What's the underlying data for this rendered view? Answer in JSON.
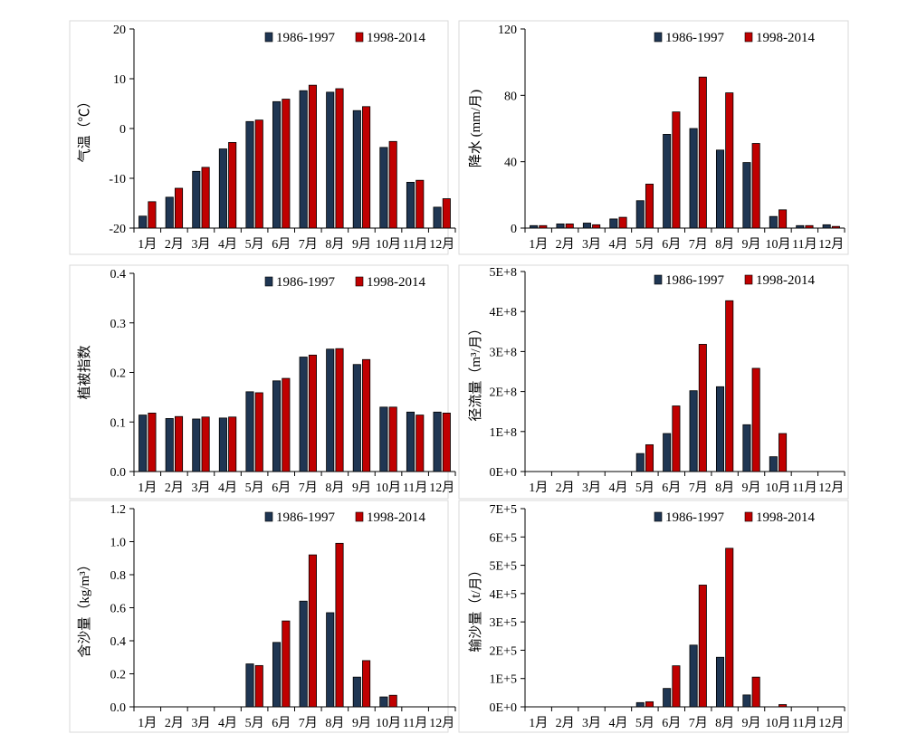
{
  "colors": {
    "series_a": "#1f3653",
    "series_b": "#c00000"
  },
  "chart_data": [
    {
      "type": "bar",
      "id": "temperature",
      "title": "",
      "ylabel": "气温（℃）",
      "xlabel": "",
      "categories": [
        "1月",
        "2月",
        "3月",
        "4月",
        "5月",
        "6月",
        "7月",
        "8月",
        "9月",
        "10月",
        "11月",
        "12月"
      ],
      "ylim": [
        -20,
        20
      ],
      "yticks": [
        "20",
        "10",
        "0",
        "-10",
        "-20"
      ],
      "ytick_values": [
        20,
        10,
        0,
        -10,
        -20
      ],
      "baseline": -20,
      "legend_position": "top-right",
      "series": [
        {
          "name": "1986-1997",
          "values": [
            -17.6,
            -13.8,
            -8.6,
            -4.1,
            1.4,
            5.4,
            7.6,
            7.3,
            3.6,
            -3.8,
            -10.8,
            -15.8
          ]
        },
        {
          "name": "1998-2014",
          "values": [
            -14.7,
            -12.0,
            -7.8,
            -2.8,
            1.7,
            5.9,
            8.7,
            8.0,
            4.4,
            -2.6,
            -10.4,
            -14.1
          ]
        }
      ]
    },
    {
      "type": "bar",
      "id": "precipitation",
      "title": "",
      "ylabel": "降水 (mm/月)",
      "xlabel": "",
      "categories": [
        "1月",
        "2月",
        "3月",
        "4月",
        "5月",
        "6月",
        "7月",
        "8月",
        "9月",
        "10月",
        "11月",
        "12月"
      ],
      "ylim": [
        0,
        120
      ],
      "yticks": [
        "120",
        "80",
        "40",
        "0"
      ],
      "ytick_values": [
        120,
        80,
        40,
        0
      ],
      "baseline": 0,
      "legend_position": "top-right",
      "series": [
        {
          "name": "1986-1997",
          "values": [
            1.5,
            2.5,
            3.0,
            5.5,
            16.5,
            56.5,
            60.0,
            47.0,
            39.5,
            7.0,
            1.5,
            2.0
          ]
        },
        {
          "name": "1998-2014",
          "values": [
            1.5,
            2.5,
            2.0,
            6.5,
            26.5,
            70.0,
            91.0,
            81.5,
            51.0,
            11.0,
            1.5,
            1.0
          ]
        }
      ]
    },
    {
      "type": "bar",
      "id": "vegetation",
      "title": "",
      "ylabel": "植被指数",
      "xlabel": "",
      "categories": [
        "1月",
        "2月",
        "3月",
        "4月",
        "5月",
        "6月",
        "7月",
        "8月",
        "9月",
        "10月",
        "11月",
        "12月"
      ],
      "ylim": [
        0,
        0.4
      ],
      "yticks": [
        "0.4",
        "0.3",
        "0.2",
        "0.1",
        "0.0"
      ],
      "ytick_values": [
        0.4,
        0.3,
        0.2,
        0.1,
        0.0
      ],
      "baseline": 0,
      "legend_position": "top-right",
      "series": [
        {
          "name": "1986-1997",
          "values": [
            0.114,
            0.107,
            0.106,
            0.108,
            0.161,
            0.183,
            0.231,
            0.247,
            0.216,
            0.13,
            0.12,
            0.12
          ]
        },
        {
          "name": "1998-2014",
          "values": [
            0.118,
            0.111,
            0.11,
            0.11,
            0.159,
            0.188,
            0.235,
            0.248,
            0.226,
            0.13,
            0.114,
            0.118
          ]
        }
      ]
    },
    {
      "type": "bar",
      "id": "runoff",
      "title": "",
      "ylabel": "径流量（m³/月）",
      "xlabel": "",
      "categories": [
        "1月",
        "2月",
        "3月",
        "4月",
        "5月",
        "6月",
        "7月",
        "8月",
        "9月",
        "10月",
        "11月",
        "12月"
      ],
      "ylim": [
        0,
        500000000
      ],
      "yticks": [
        "5E+8",
        "4E+8",
        "3E+8",
        "2E+8",
        "1E+8",
        "0E+0"
      ],
      "ytick_values": [
        500000000,
        400000000,
        300000000,
        200000000,
        100000000,
        0
      ],
      "baseline": 0,
      "legend_position": "top-right",
      "series": [
        {
          "name": "1986-1997",
          "values": [
            0,
            0,
            0,
            0,
            45000000,
            95000000,
            202000000,
            212000000,
            117000000,
            37000000,
            0,
            0
          ]
        },
        {
          "name": "1998-2014",
          "values": [
            0,
            0,
            0,
            0,
            67000000,
            164000000,
            318000000,
            427000000,
            258000000,
            95000000,
            0,
            0
          ]
        }
      ]
    },
    {
      "type": "bar",
      "id": "sediment-concentration",
      "title": "",
      "ylabel": "含沙量（kg/m³）",
      "xlabel": "",
      "categories": [
        "1月",
        "2月",
        "3月",
        "4月",
        "5月",
        "6月",
        "7月",
        "8月",
        "9月",
        "10月",
        "11月",
        "12月"
      ],
      "ylim": [
        0,
        1.2
      ],
      "yticks": [
        "1.2",
        "1.0",
        "0.8",
        "0.6",
        "0.4",
        "0.2",
        "0.0"
      ],
      "ytick_values": [
        1.2,
        1.0,
        0.8,
        0.6,
        0.4,
        0.2,
        0.0
      ],
      "baseline": 0,
      "legend_position": "top-right",
      "series": [
        {
          "name": "1986-1997",
          "values": [
            0,
            0,
            0,
            0,
            0.26,
            0.39,
            0.64,
            0.57,
            0.18,
            0.06,
            0,
            0
          ]
        },
        {
          "name": "1998-2014",
          "values": [
            0,
            0,
            0,
            0,
            0.25,
            0.52,
            0.92,
            0.99,
            0.28,
            0.07,
            0,
            0
          ]
        }
      ]
    },
    {
      "type": "bar",
      "id": "sediment-transport",
      "title": "",
      "ylabel": "输沙量（t/月）",
      "xlabel": "",
      "categories": [
        "1月",
        "2月",
        "3月",
        "4月",
        "5月",
        "6月",
        "7月",
        "8月",
        "9月",
        "10月",
        "11月",
        "12月"
      ],
      "ylim": [
        0,
        700000
      ],
      "yticks": [
        "7E+5",
        "6E+5",
        "5E+5",
        "4E+5",
        "3E+5",
        "2E+5",
        "1E+5",
        "0E+0"
      ],
      "ytick_values": [
        700000,
        600000,
        500000,
        400000,
        300000,
        200000,
        100000,
        0
      ],
      "baseline": 0,
      "legend_position": "top-right",
      "series": [
        {
          "name": "1986-1997",
          "values": [
            0,
            0,
            0,
            0,
            15000,
            65000,
            218000,
            175000,
            42000,
            0,
            0,
            0
          ]
        },
        {
          "name": "1998-2014",
          "values": [
            0,
            0,
            0,
            0,
            18000,
            145000,
            430000,
            560000,
            105000,
            8000,
            0,
            0
          ]
        }
      ]
    }
  ]
}
